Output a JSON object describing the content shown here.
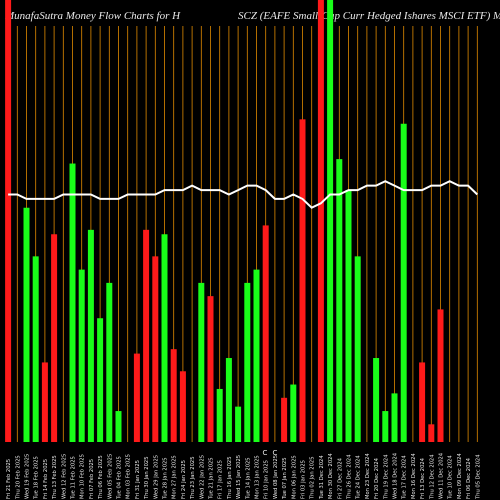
{
  "header": {
    "title_left": "MunafaSutra  Money Flow  Charts for H",
    "title_right": "SCZ           (EAFE Small-Cap Curr Hedged Ishares MSCI ETF) Munafa"
  },
  "chart_data": {
    "type": "bar",
    "title": "MunafaSutra  Money Flow  Charts for HSCZ (EAFE Small-Cap Curr Hedged Ishares MSCI ETF) Munafa",
    "categories": [
      "Fri 21 Feb 2025",
      "Thu 20 Feb 2025",
      "Wed 19 Feb 2025",
      "Tue 18 Feb 2025",
      "Fri 14 Feb 2025",
      "Thu 13 Feb 2025",
      "Wed 12 Feb 2025",
      "Tue 11 Feb 2025",
      "Mon 10 Feb 2025",
      "Fri 07 Feb 2025",
      "Thu 06 Feb 2025",
      "Wed 05 Feb 2025",
      "Tue 04 Feb 2025",
      "Mon 03 Feb 2025",
      "Fri 31 Jan 2025",
      "Thu 30 Jan 2025",
      "Wed 29 Jan 2025",
      "Tue 28 Jan 2025",
      "Mon 27 Jan 2025",
      "Fri 24 Jan 2025",
      "Thu 23 Jan 2025",
      "Wed 22 Jan 2025",
      "Tue 21 Jan 2025",
      "Fri 17 Jan 2025",
      "Thu 16 Jan 2025",
      "Wed 15 Jan 2025",
      "Tue 14 Jan 2025",
      "Mon 13 Jan 2025",
      "Fri 10 Jan 2025",
      "Wed 08 Jan 2025",
      "Tue 07 Jan 2025",
      "Mon 06 Jan 2025",
      "Fri 03 Jan 2025",
      "Thu 02 Jan 2025",
      "Tue 31 Dec 2024",
      "Mon 30 Dec 2024",
      "Fri 27 Dec 2024",
      "Thu 26 Dec 2024",
      "Tue 24 Dec 2024",
      "Mon 23 Dec 2024",
      "Fri 20 Dec 2024",
      "Thu 19 Dec 2024",
      "Wed 18 Dec 2024",
      "Tue 17 Dec 2024",
      "Mon 16 Dec 2024",
      "Fri 13 Dec 2024",
      "Thu 12 Dec 2024",
      "Wed 11 Dec 2024",
      "Tue 10 Dec 2024",
      "Mon 09 Dec 2024",
      "Fri 06 Dec 2024",
      "Thu 05 Dec 2024"
    ],
    "values": [
      100,
      0,
      53,
      42,
      18,
      47,
      0,
      63,
      39,
      48,
      28,
      36,
      7,
      0,
      20,
      48,
      42,
      47,
      21,
      16,
      0,
      36,
      33,
      12,
      19,
      8,
      36,
      39,
      49,
      0,
      10,
      13,
      73,
      0,
      100,
      100,
      64,
      57,
      42,
      0,
      19,
      7,
      11,
      72,
      0,
      18,
      4,
      30,
      0,
      0,
      0,
      0
    ],
    "bar_colors": [
      "red",
      "none",
      "green",
      "green",
      "red",
      "red",
      "none",
      "green",
      "green",
      "green",
      "green",
      "green",
      "green",
      "none",
      "red",
      "red",
      "red",
      "green",
      "red",
      "red",
      "none",
      "green",
      "red",
      "green",
      "green",
      "green",
      "green",
      "green",
      "red",
      "none",
      "red",
      "green",
      "red",
      "none",
      "red",
      "green",
      "green",
      "green",
      "green",
      "none",
      "green",
      "green",
      "green",
      "green",
      "none",
      "red",
      "red",
      "red",
      "none",
      "none",
      "none",
      "none"
    ],
    "ylim": [
      0,
      100
    ],
    "line_series": {
      "name": "",
      "values": [
        56,
        56,
        55,
        55,
        55,
        55,
        56,
        56,
        56,
        56,
        55,
        55,
        55,
        56,
        56,
        56,
        56,
        57,
        57,
        57,
        58,
        57,
        57,
        57,
        56,
        57,
        58,
        58,
        57,
        55,
        55,
        56,
        55,
        53,
        54,
        56,
        56,
        57,
        57,
        58,
        58,
        59,
        58,
        57,
        57,
        57,
        58,
        58,
        59,
        58,
        58,
        56
      ],
      "ylim": [
        0,
        100
      ],
      "color": "#ffffff"
    },
    "axis_marks": [
      "C",
      "C"
    ],
    "colors": {
      "background": "#000000",
      "green": "#19ff19",
      "red": "#ff1a1a",
      "gridline": "#e08a00",
      "text": "#eaeaea"
    }
  }
}
